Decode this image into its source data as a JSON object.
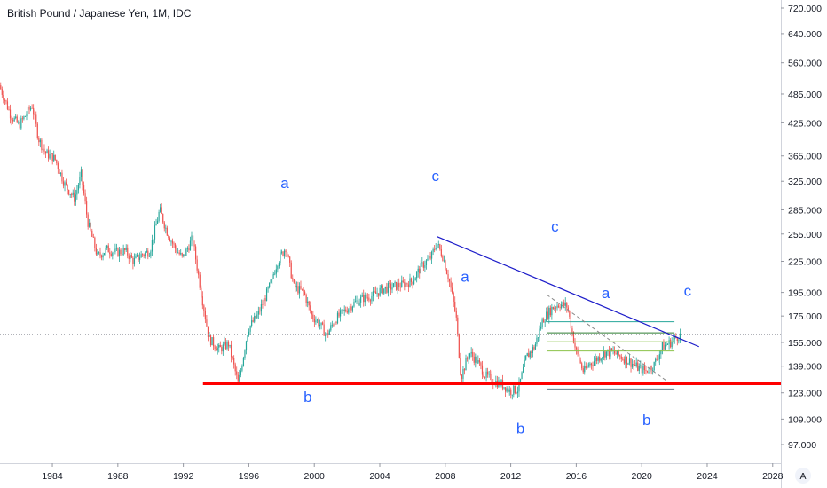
{
  "header": {
    "title": "British Pound / Japanese Yen, 1M, IDC"
  },
  "chart_data": {
    "type": "candlestick",
    "title": "British Pound / Japanese Yen, 1M, IDC",
    "xlabel": "",
    "ylabel": "",
    "x_range": [
      1980.8,
      2028.5
    ],
    "y_range": [
      90,
      760
    ],
    "y_scale": "log",
    "y_ticks": [
      "720.000",
      "640.000",
      "560.000",
      "485.000",
      "425.000",
      "365.000",
      "325.000",
      "285.000",
      "255.000",
      "225.000",
      "195.000",
      "175.000",
      "155.000",
      "139.000",
      "123.000",
      "109.000",
      "97.000"
    ],
    "y_tick_values": [
      720,
      640,
      560,
      485,
      425,
      365,
      325,
      285,
      255,
      225,
      195,
      175,
      155,
      139,
      123,
      109,
      97
    ],
    "x_ticks": [
      "1984",
      "1988",
      "1992",
      "1996",
      "2000",
      "2004",
      "2008",
      "2012",
      "2016",
      "2020",
      "2024",
      "2028"
    ],
    "x_tick_values": [
      1984,
      1988,
      1992,
      1996,
      2000,
      2004,
      2008,
      2012,
      2016,
      2020,
      2024,
      2028
    ],
    "up_color": "#26a69a",
    "down_color": "#ef5350",
    "path_points": [
      [
        1980.8,
        505
      ],
      [
        1981.5,
        440
      ],
      [
        1982.0,
        420
      ],
      [
        1982.8,
        460
      ],
      [
        1983.2,
        395
      ],
      [
        1983.6,
        370
      ],
      [
        1984.2,
        360
      ],
      [
        1984.8,
        320
      ],
      [
        1985.4,
        300
      ],
      [
        1985.8,
        335
      ],
      [
        1986.2,
        270
      ],
      [
        1986.8,
        230
      ],
      [
        1987.4,
        238
      ],
      [
        1987.9,
        234
      ],
      [
        1988.5,
        236
      ],
      [
        1989.0,
        225
      ],
      [
        1989.5,
        232
      ],
      [
        1990.0,
        236
      ],
      [
        1990.6,
        285
      ],
      [
        1991.0,
        260
      ],
      [
        1991.5,
        240
      ],
      [
        1992.0,
        228
      ],
      [
        1992.6,
        250
      ],
      [
        1993.1,
        198
      ],
      [
        1993.6,
        158
      ],
      [
        1994.2,
        150
      ],
      [
        1994.8,
        154
      ],
      [
        1995.4,
        128
      ],
      [
        1996.0,
        165
      ],
      [
        1996.6,
        176
      ],
      [
        1997.3,
        200
      ],
      [
        1997.8,
        225
      ],
      [
        1998.3,
        240
      ],
      [
        1998.8,
        200
      ],
      [
        1999.4,
        195
      ],
      [
        1999.9,
        175
      ],
      [
        2000.3,
        170
      ],
      [
        2000.8,
        160
      ],
      [
        2001.3,
        172
      ],
      [
        2001.8,
        178
      ],
      [
        2002.4,
        185
      ],
      [
        2003.0,
        190
      ],
      [
        2003.6,
        192
      ],
      [
        2004.2,
        198
      ],
      [
        2004.8,
        200
      ],
      [
        2005.4,
        202
      ],
      [
        2006.0,
        205
      ],
      [
        2006.6,
        220
      ],
      [
        2007.2,
        230
      ],
      [
        2007.5,
        245
      ],
      [
        2007.9,
        230
      ],
      [
        2008.3,
        205
      ],
      [
        2008.7,
        175
      ],
      [
        2009.0,
        132
      ],
      [
        2009.5,
        148
      ],
      [
        2010.0,
        142
      ],
      [
        2010.5,
        133
      ],
      [
        2011.0,
        130
      ],
      [
        2011.5,
        128
      ],
      [
        2012.0,
        124
      ],
      [
        2012.5,
        125
      ],
      [
        2013.0,
        145
      ],
      [
        2013.5,
        152
      ],
      [
        2014.0,
        172
      ],
      [
        2014.6,
        182
      ],
      [
        2015.0,
        185
      ],
      [
        2015.5,
        183
      ],
      [
        2016.0,
        150
      ],
      [
        2016.5,
        135
      ],
      [
        2016.8,
        140
      ],
      [
        2017.2,
        143
      ],
      [
        2017.8,
        148
      ],
      [
        2018.3,
        148
      ],
      [
        2018.8,
        145
      ],
      [
        2019.3,
        142
      ],
      [
        2019.8,
        138
      ],
      [
        2020.3,
        136
      ],
      [
        2020.8,
        140
      ],
      [
        2021.3,
        152
      ],
      [
        2021.8,
        155
      ],
      [
        2022.3,
        160
      ]
    ],
    "annotations": {
      "support_line": {
        "x": [
          1993.2,
          2028.5
        ],
        "y": 128.5,
        "color": "#ff0000"
      },
      "downtrend_line": {
        "x": [
          2007.5,
          2023.5
        ],
        "y": [
          252,
          152
        ],
        "color": "#1c1cc9"
      },
      "dashed_line": {
        "x": [
          2014.2,
          2021.8
        ],
        "y": [
          193,
          128
        ],
        "color": "#888888"
      },
      "fib_lines": [
        {
          "x": [
            2014.2,
            2022.0
          ],
          "y": 170.5,
          "color": "#26a69a"
        },
        {
          "x": [
            2014.2,
            2022.0
          ],
          "y": 162,
          "color": "#2e7d32"
        },
        {
          "x": [
            2014.2,
            2022.0
          ],
          "y": 155.5,
          "color": "#9ccc65"
        },
        {
          "x": [
            2014.2,
            2022.0
          ],
          "y": 149,
          "color": "#8bc34a"
        },
        {
          "x": [
            2014.2,
            2022.0
          ],
          "y": 125.2,
          "color": "#607d8b"
        }
      ],
      "current_price": 161
    },
    "wave_labels": [
      {
        "text": "a",
        "x": 1998.2,
        "y": 315
      },
      {
        "text": "c",
        "x": 2007.4,
        "y": 325
      },
      {
        "text": "b",
        "x": 1999.6,
        "y": 118
      },
      {
        "text": "a",
        "x": 2009.2,
        "y": 205
      },
      {
        "text": "c",
        "x": 2014.7,
        "y": 258
      },
      {
        "text": "b",
        "x": 2012.6,
        "y": 102
      },
      {
        "text": "a",
        "x": 2017.8,
        "y": 190
      },
      {
        "text": "c",
        "x": 2022.8,
        "y": 192
      },
      {
        "text": "b",
        "x": 2020.3,
        "y": 106
      }
    ],
    "axis_corner_label": "A"
  }
}
